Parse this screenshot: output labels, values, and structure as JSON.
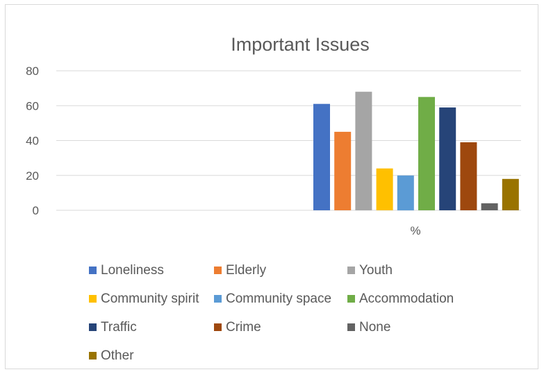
{
  "chart_data": {
    "type": "bar",
    "title": "Important Issues",
    "categories": [
      "%"
    ],
    "ylim": [
      0,
      80
    ],
    "yticks": [
      0,
      20,
      40,
      60,
      80
    ],
    "grid": true,
    "legend_position": "bottom",
    "series": [
      {
        "name": "Loneliness",
        "values": [
          61
        ],
        "color": "#4472C4"
      },
      {
        "name": "Elderly",
        "values": [
          45
        ],
        "color": "#ED7D31"
      },
      {
        "name": "Youth",
        "values": [
          68
        ],
        "color": "#A5A5A5"
      },
      {
        "name": "Community spirit",
        "values": [
          24
        ],
        "color": "#FFC000"
      },
      {
        "name": "Community space",
        "values": [
          20
        ],
        "color": "#5B9BD5"
      },
      {
        "name": "Accommodation",
        "values": [
          65
        ],
        "color": "#70AD47"
      },
      {
        "name": "Traffic",
        "values": [
          59
        ],
        "color": "#264478"
      },
      {
        "name": "Crime",
        "values": [
          39
        ],
        "color": "#9E480E"
      },
      {
        "name": "None",
        "values": [
          4
        ],
        "color": "#636363"
      },
      {
        "name": "Other",
        "values": [
          18
        ],
        "color": "#997300"
      }
    ]
  }
}
